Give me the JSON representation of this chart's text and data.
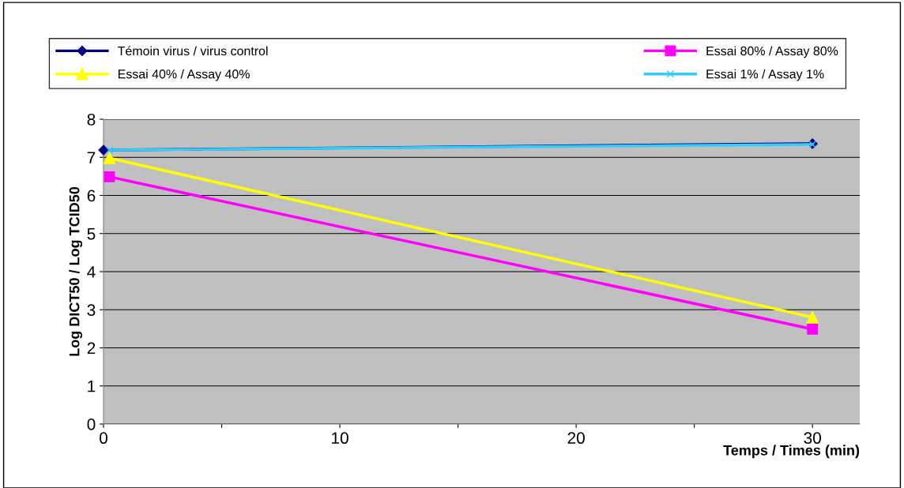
{
  "chart_data": {
    "type": "line",
    "xlabel": "Temps / Times (min)",
    "ylabel": "Log DICT50 / Log TCID50",
    "xlim": [
      0,
      32
    ],
    "xticks": [
      0,
      {
        "value": 5,
        "label": null
      },
      10,
      {
        "value": 15,
        "label": null
      },
      20,
      {
        "value": 25,
        "label": null
      },
      30
    ],
    "ylim": [
      0,
      8
    ],
    "yticks": [
      0,
      1,
      2,
      3,
      4,
      5,
      6,
      7,
      8
    ],
    "grid": "y",
    "legend": "top",
    "series": [
      {
        "name": "Témoin virus / virus control",
        "color": "#000080",
        "marker": "diamond",
        "x": [
          0,
          30
        ],
        "values": [
          7.19,
          7.36
        ]
      },
      {
        "name": "Essai 80% / Assay 80%",
        "color": "#ff00ff",
        "marker": "square",
        "x": [
          0.25,
          30
        ],
        "values": [
          6.49,
          2.49
        ]
      },
      {
        "name": "Essai 40% / Assay 40%",
        "color": "#ffff00",
        "marker": "triangle",
        "x": [
          0.25,
          30
        ],
        "values": [
          6.98,
          2.8
        ]
      },
      {
        "name": "Essai 1% / Assay 1%",
        "color": "#33ccff",
        "marker": "cross",
        "x": [
          0.25,
          30
        ],
        "values": [
          7.19,
          7.34
        ]
      }
    ]
  }
}
